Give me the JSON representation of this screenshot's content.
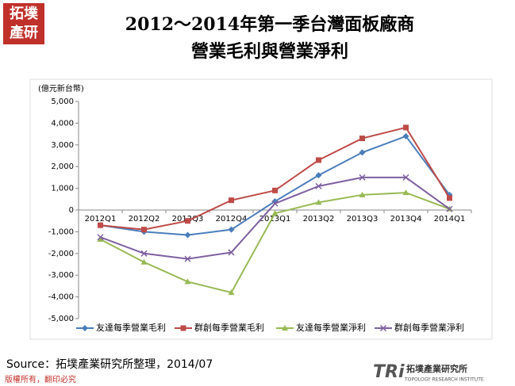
{
  "chart_data": {
    "type": "line",
    "title": [
      "2012～2014年第一季台灣面板廠商",
      "營業毛利與營業淨利"
    ],
    "y_axis_label": "(億元新台幣)",
    "categories": [
      "2012Q1",
      "2012Q2",
      "2012Q3",
      "2012Q4",
      "2013Q1",
      "2013Q2",
      "2013Q3",
      "2013Q4",
      "2014Q1"
    ],
    "series": [
      {
        "name": "友達每季營業毛利",
        "color": "#4a7ebb",
        "marker": "diamond",
        "values": [
          -700,
          -1000,
          -1150,
          -900,
          400,
          1600,
          2650,
          3400,
          700
        ]
      },
      {
        "name": "群創每季營業毛利",
        "color": "#be4b48",
        "marker": "square",
        "values": [
          -700,
          -900,
          -500,
          450,
          900,
          2300,
          3300,
          3800,
          550
        ]
      },
      {
        "name": "友達每季營業淨利",
        "color": "#98b954",
        "marker": "triangle",
        "values": [
          -1350,
          -2400,
          -3300,
          -3800,
          -150,
          350,
          700,
          800,
          50
        ]
      },
      {
        "name": "群創每季營業淨利",
        "color": "#7d60a0",
        "marker": "x",
        "values": [
          -1250,
          -2000,
          -2250,
          -1950,
          300,
          1100,
          1500,
          1500,
          50
        ]
      }
    ],
    "ylim": [
      -5000,
      5000
    ],
    "yticks": [
      {
        "value": -5000,
        "label": "-5,000"
      },
      {
        "value": -4000,
        "label": "-4,000"
      },
      {
        "value": -3000,
        "label": "-3,000"
      },
      {
        "value": -2000,
        "label": "-2,000"
      },
      {
        "value": -1000,
        "label": "-1,000"
      },
      0,
      {
        "value": 1000,
        "label": "1,000"
      },
      {
        "value": 2000,
        "label": "2,000"
      },
      {
        "value": 3000,
        "label": "3,000"
      },
      {
        "value": 4000,
        "label": "4,000"
      },
      {
        "value": 5000,
        "label": "5,000"
      }
    ],
    "grid": false,
    "legend": "bottom"
  },
  "source": "Source：拓墣產業研究所整理，2014/07",
  "footer": "版權所有，翻印必究",
  "logo": {
    "top": "拓墣",
    "bottom": "產研"
  },
  "brand": {
    "mark": "TRi",
    "name": "拓墣產業研究所",
    "english": "TOPOLOGY RESEARCH INSTITUTE"
  }
}
